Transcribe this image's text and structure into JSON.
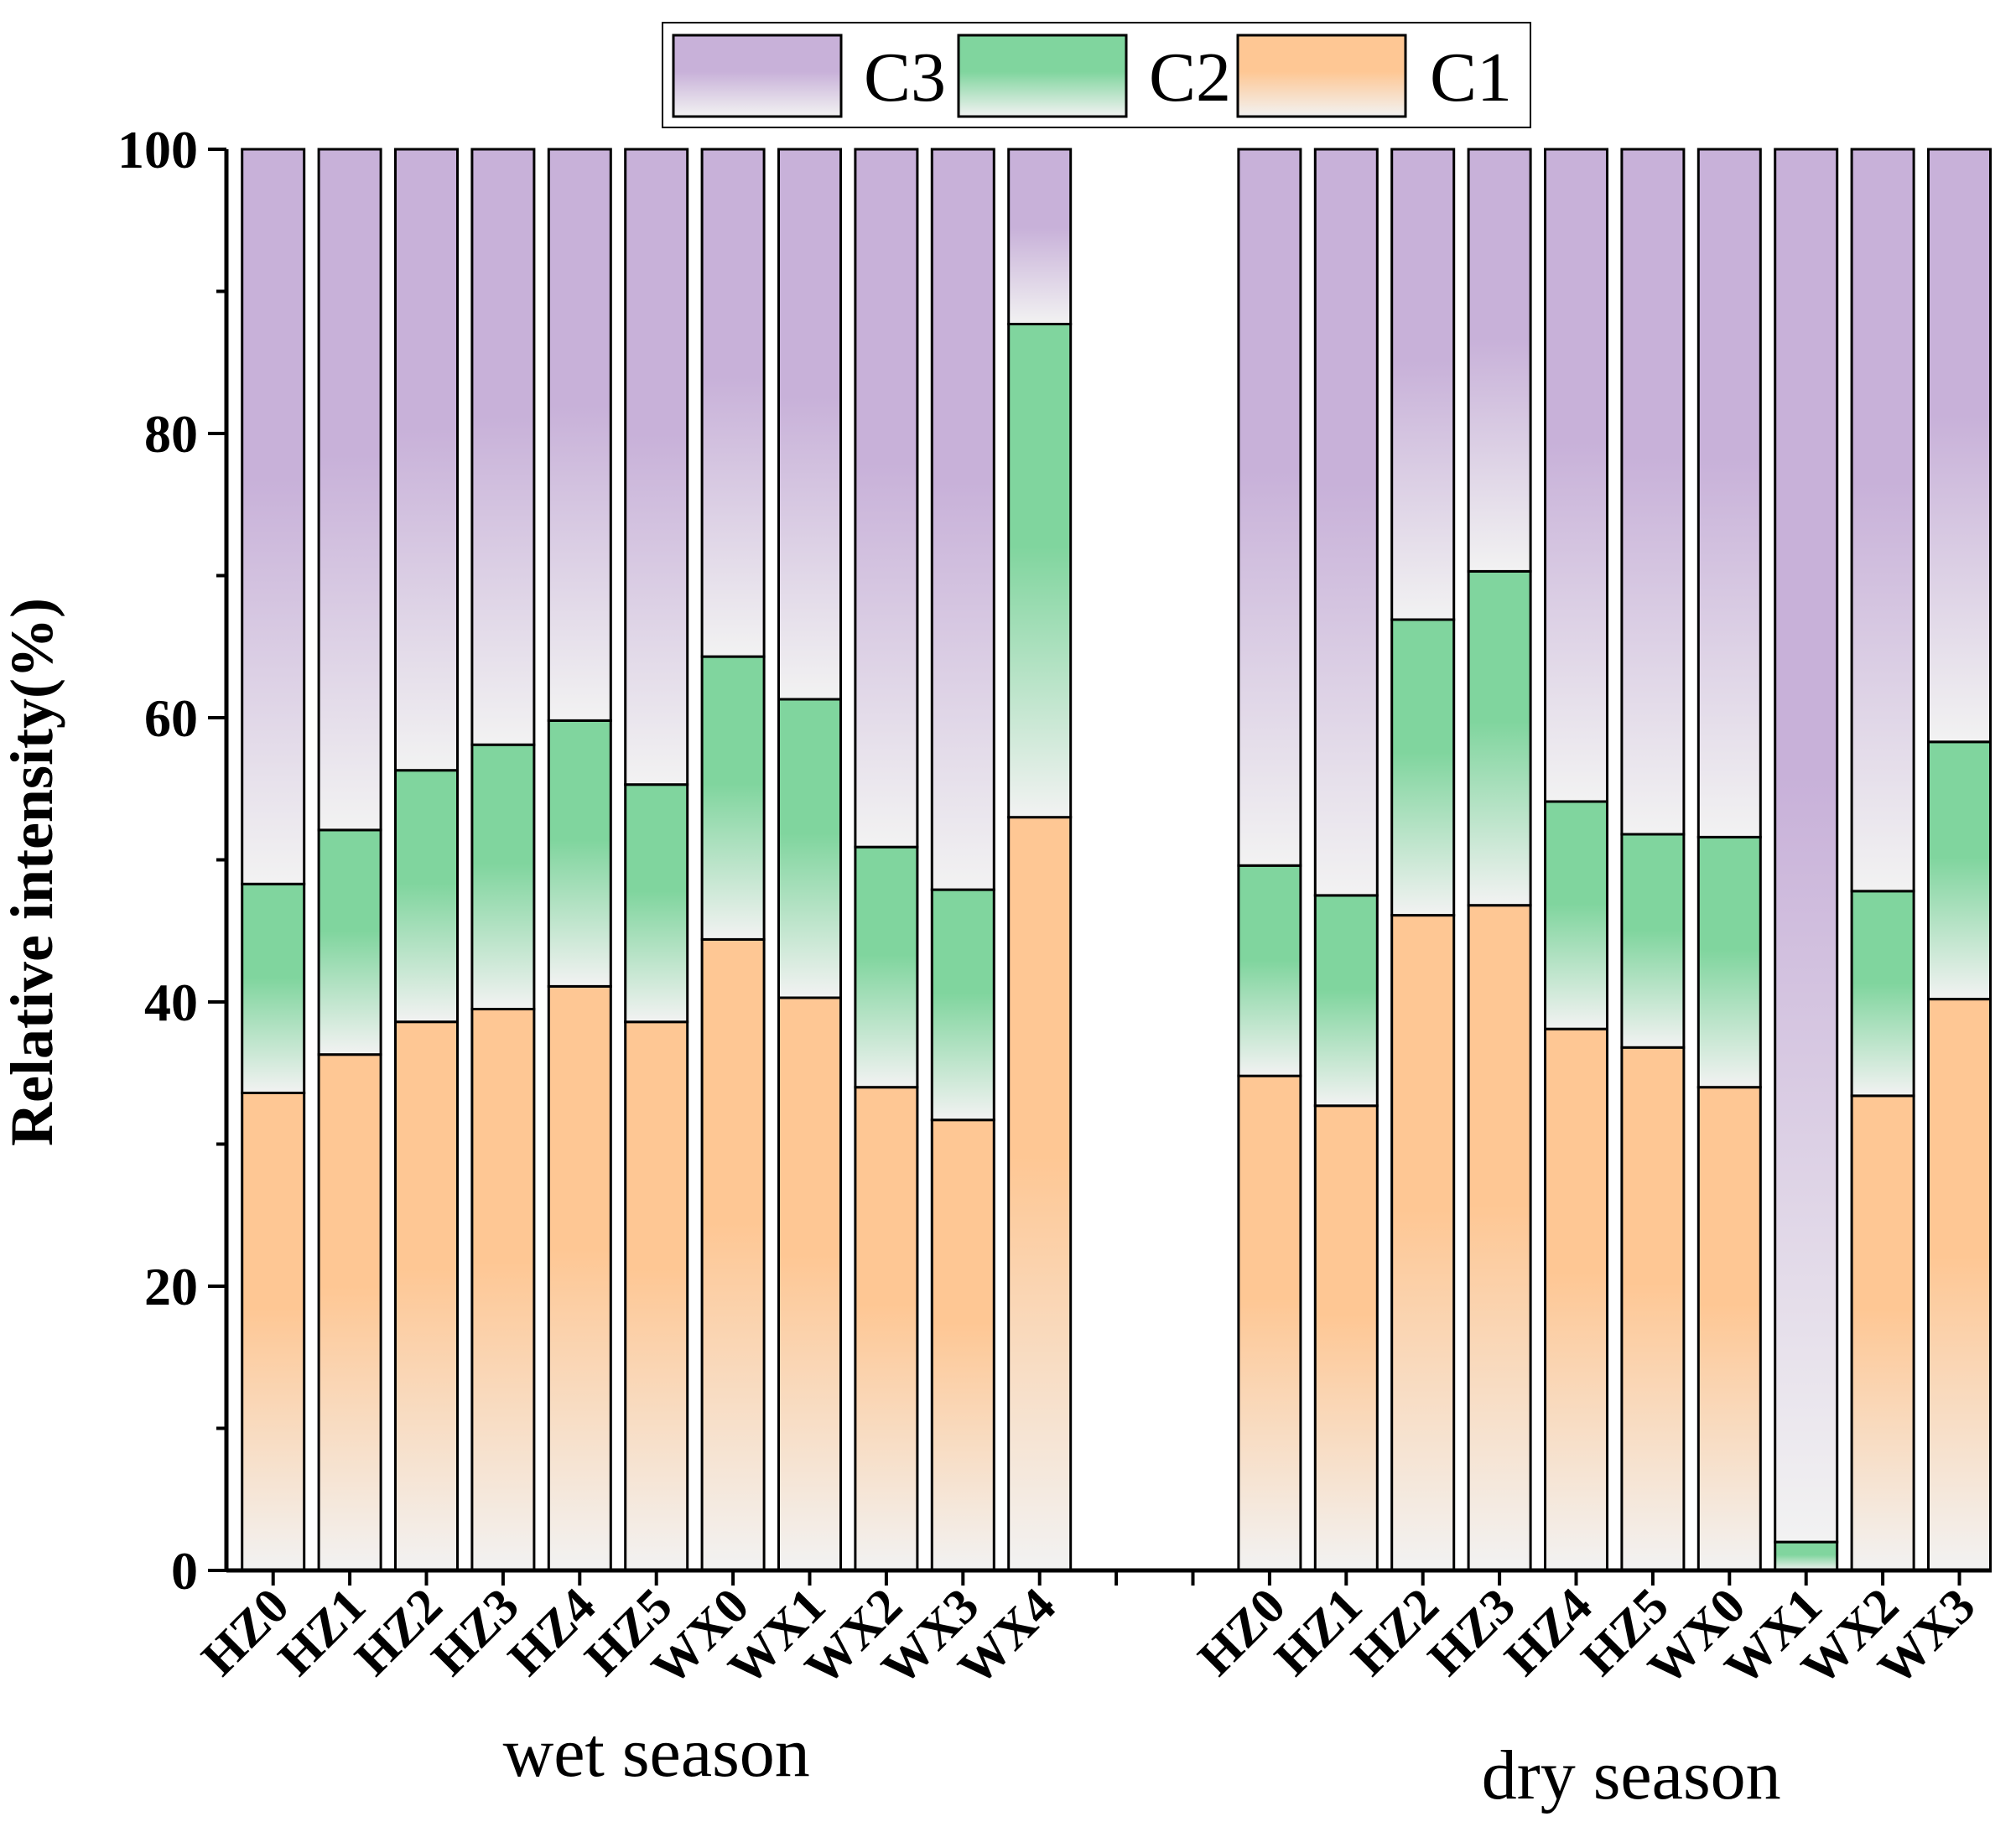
{
  "chart_data": {
    "type": "bar",
    "stacked": true,
    "ylabel": "Relative intensity(%)",
    "ylim": [
      0,
      100
    ],
    "yticks": [
      "0",
      "20",
      "40",
      "60",
      "80",
      "100"
    ],
    "legend": {
      "position": "top-center",
      "entries": [
        "C3",
        "C2",
        "C1"
      ]
    },
    "groups": [
      {
        "label": "wet season",
        "categories": [
          "HZ0",
          "HZ1",
          "HZ2",
          "HZ3",
          "HZ4",
          "HZ5",
          "WX0",
          "WX1",
          "WX2",
          "WX3",
          "WX4"
        ],
        "series": [
          {
            "name": "C1",
            "values": [
              33.6,
              36.3,
              38.6,
              39.5,
              41.1,
              38.6,
              44.4,
              40.3,
              34.0,
              31.7,
              53.0
            ]
          },
          {
            "name": "C2",
            "values": [
              14.7,
              15.8,
              17.7,
              18.6,
              18.7,
              16.7,
              19.9,
              21.0,
              16.9,
              16.2,
              34.7
            ]
          },
          {
            "name": "C3",
            "values": [
              51.7,
              47.9,
              43.7,
              41.9,
              40.2,
              44.7,
              35.7,
              38.7,
              49.1,
              52.1,
              12.3
            ]
          }
        ]
      },
      {
        "label": "dry season",
        "categories": [
          "HZ0",
          "HZ1",
          "HZ2",
          "HZ3",
          "HZ4",
          "HZ5",
          "WX0",
          "WX1",
          "WX2",
          "WX3"
        ],
        "series": [
          {
            "name": "C1",
            "values": [
              34.8,
              32.7,
              46.1,
              46.8,
              38.1,
              36.8,
              34.0,
              0.0,
              33.4,
              40.2
            ]
          },
          {
            "name": "C2",
            "values": [
              14.8,
              14.8,
              20.8,
              23.5,
              16.0,
              15.0,
              17.6,
              2.0,
              14.4,
              18.1
            ]
          },
          {
            "name": "C3",
            "values": [
              50.4,
              52.5,
              33.1,
              29.7,
              45.9,
              48.2,
              48.4,
              98.0,
              52.2,
              41.7
            ]
          }
        ]
      }
    ],
    "colors": {
      "C1": "#fec794",
      "C2": "#80d59e",
      "C3": "#c8b1d9",
      "fade": "#f2f2f2",
      "outline": "#000000"
    }
  }
}
